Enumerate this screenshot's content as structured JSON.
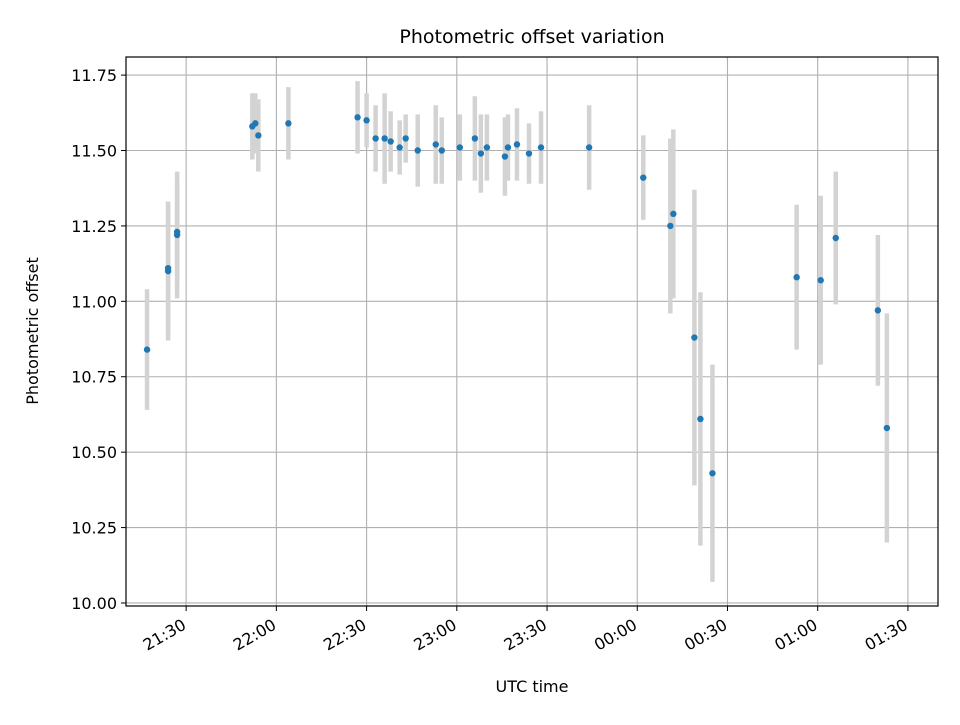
{
  "chart_data": {
    "type": "scatter",
    "title": "Photometric offset variation",
    "xlabel": "UTC time",
    "ylabel": "Photometric offset",
    "x_unit": "UTC time (hh:mm), night spanning midnight",
    "xlim": [
      "21:10",
      "01:40"
    ],
    "ylim": [
      9.99,
      11.81
    ],
    "grid": true,
    "x_ticks": [
      "21:30",
      "22:00",
      "22:30",
      "23:00",
      "23:30",
      "00:00",
      "00:30",
      "01:00",
      "01:30"
    ],
    "y_ticks": [
      "10.00",
      "10.25",
      "10.50",
      "10.75",
      "11.00",
      "11.25",
      "11.50",
      "11.75"
    ],
    "colors": {
      "point": "#1f77b4",
      "errorbar": "#d3d3d3",
      "grid": "#b0b0b0"
    },
    "series": [
      {
        "points": [
          {
            "x": "21:17",
            "y": 10.84,
            "err": 0.2
          },
          {
            "x": "21:24",
            "y": 11.1,
            "err": 0.23
          },
          {
            "x": "21:24",
            "y": 11.11,
            "err": 0.22
          },
          {
            "x": "21:27",
            "y": 11.22,
            "err": 0.21
          },
          {
            "x": "21:27",
            "y": 11.23,
            "err": 0.17
          },
          {
            "x": "21:52",
            "y": 11.58,
            "err": 0.11
          },
          {
            "x": "21:53",
            "y": 11.59,
            "err": 0.1
          },
          {
            "x": "21:54",
            "y": 11.55,
            "err": 0.12
          },
          {
            "x": "22:04",
            "y": 11.59,
            "err": 0.12
          },
          {
            "x": "22:27",
            "y": 11.61,
            "err": 0.12
          },
          {
            "x": "22:30",
            "y": 11.6,
            "err": 0.09
          },
          {
            "x": "22:33",
            "y": 11.54,
            "err": 0.11
          },
          {
            "x": "22:36",
            "y": 11.54,
            "err": 0.15
          },
          {
            "x": "22:38",
            "y": 11.53,
            "err": 0.1
          },
          {
            "x": "22:41",
            "y": 11.51,
            "err": 0.09
          },
          {
            "x": "22:43",
            "y": 11.54,
            "err": 0.08
          },
          {
            "x": "22:47",
            "y": 11.5,
            "err": 0.12
          },
          {
            "x": "22:53",
            "y": 11.52,
            "err": 0.13
          },
          {
            "x": "22:55",
            "y": 11.5,
            "err": 0.11
          },
          {
            "x": "23:01",
            "y": 11.51,
            "err": 0.11
          },
          {
            "x": "23:06",
            "y": 11.54,
            "err": 0.14
          },
          {
            "x": "23:08",
            "y": 11.49,
            "err": 0.13
          },
          {
            "x": "23:10",
            "y": 11.51,
            "err": 0.11
          },
          {
            "x": "23:16",
            "y": 11.48,
            "err": 0.13
          },
          {
            "x": "23:17",
            "y": 11.51,
            "err": 0.11
          },
          {
            "x": "23:20",
            "y": 11.52,
            "err": 0.12
          },
          {
            "x": "23:24",
            "y": 11.49,
            "err": 0.1
          },
          {
            "x": "23:28",
            "y": 11.51,
            "err": 0.12
          },
          {
            "x": "23:44",
            "y": 11.51,
            "err": 0.14
          },
          {
            "x": "00:02",
            "y": 11.41,
            "err": 0.14
          },
          {
            "x": "00:11",
            "y": 11.25,
            "err": 0.29
          },
          {
            "x": "00:12",
            "y": 11.29,
            "err": 0.28
          },
          {
            "x": "00:19",
            "y": 10.88,
            "err": 0.49
          },
          {
            "x": "00:21",
            "y": 10.61,
            "err": 0.42
          },
          {
            "x": "00:25",
            "y": 10.43,
            "err": 0.36
          },
          {
            "x": "00:53",
            "y": 11.08,
            "err": 0.24
          },
          {
            "x": "01:01",
            "y": 11.07,
            "err": 0.28
          },
          {
            "x": "01:06",
            "y": 11.21,
            "err": 0.22
          },
          {
            "x": "01:20",
            "y": 10.97,
            "err": 0.25
          },
          {
            "x": "01:23",
            "y": 10.58,
            "err": 0.38
          }
        ]
      }
    ]
  }
}
